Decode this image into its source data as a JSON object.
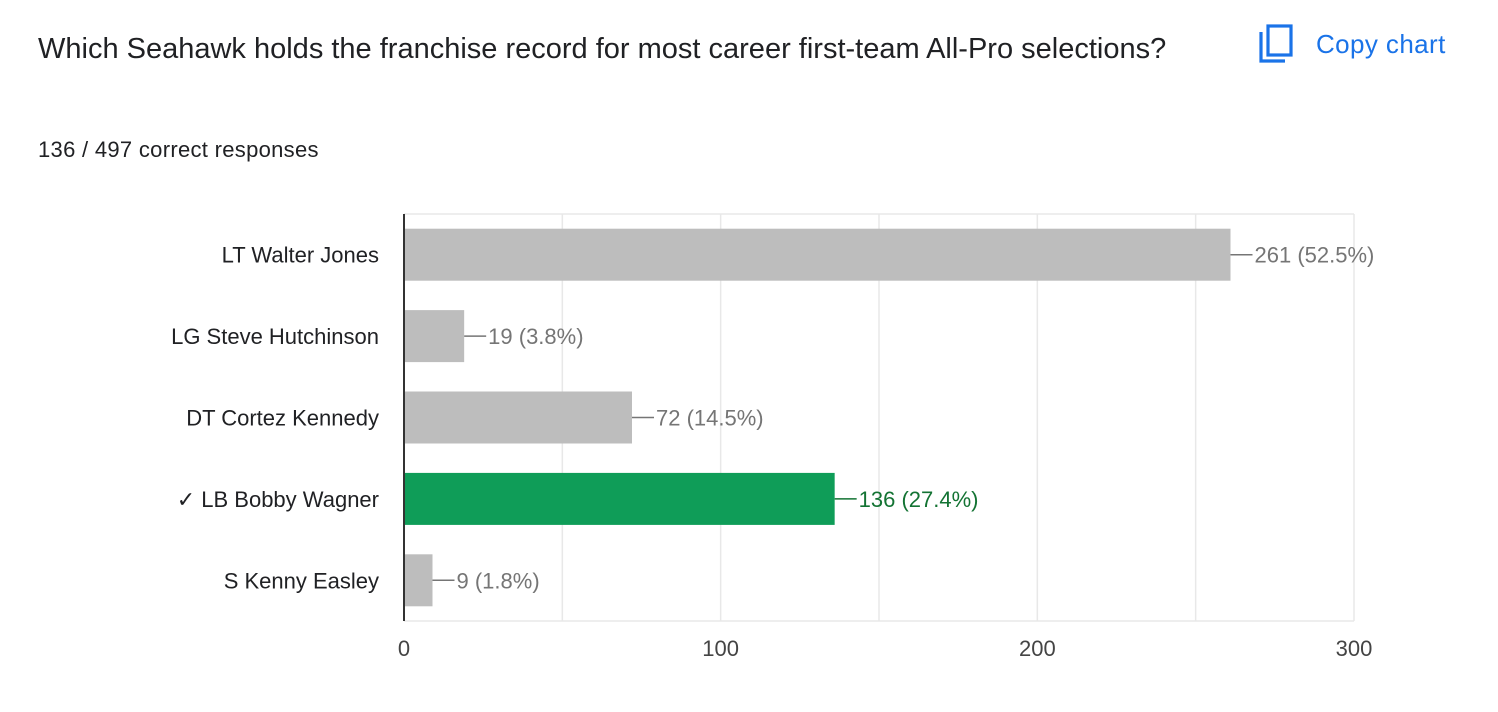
{
  "question": {
    "title": "Which Seahawk holds the franchise record for most career first-team All-Pro selections?",
    "summary": "136 / 497 correct responses"
  },
  "toolbar": {
    "copy_chart_label": "Copy chart",
    "copy_icon": "copy-icon"
  },
  "colors": {
    "accent": "#1a73e8",
    "correct_bar": "#0f9d58",
    "correct_label": "#137333",
    "default_bar": "#bdbdbd",
    "default_label": "#757575",
    "gridline": "#e8e8e8"
  },
  "chart_data": {
    "type": "bar",
    "orientation": "horizontal",
    "categories": [
      "LT Walter Jones",
      "LG Steve Hutchinson",
      "DT Cortez Kennedy",
      "✓ LB Bobby Wagner",
      "S Kenny Easley"
    ],
    "values": [
      261,
      19,
      72,
      136,
      9
    ],
    "data_labels": [
      "261 (52.5%)",
      "19 (3.8%)",
      "72 (14.5%)",
      "136 (27.4%)",
      "9 (1.8%)"
    ],
    "correct": [
      false,
      false,
      false,
      true,
      false
    ],
    "xlim": [
      0,
      300
    ],
    "x_ticks": [
      0,
      100,
      200,
      300
    ],
    "grid": true,
    "title": "",
    "xlabel": "",
    "ylabel": ""
  }
}
